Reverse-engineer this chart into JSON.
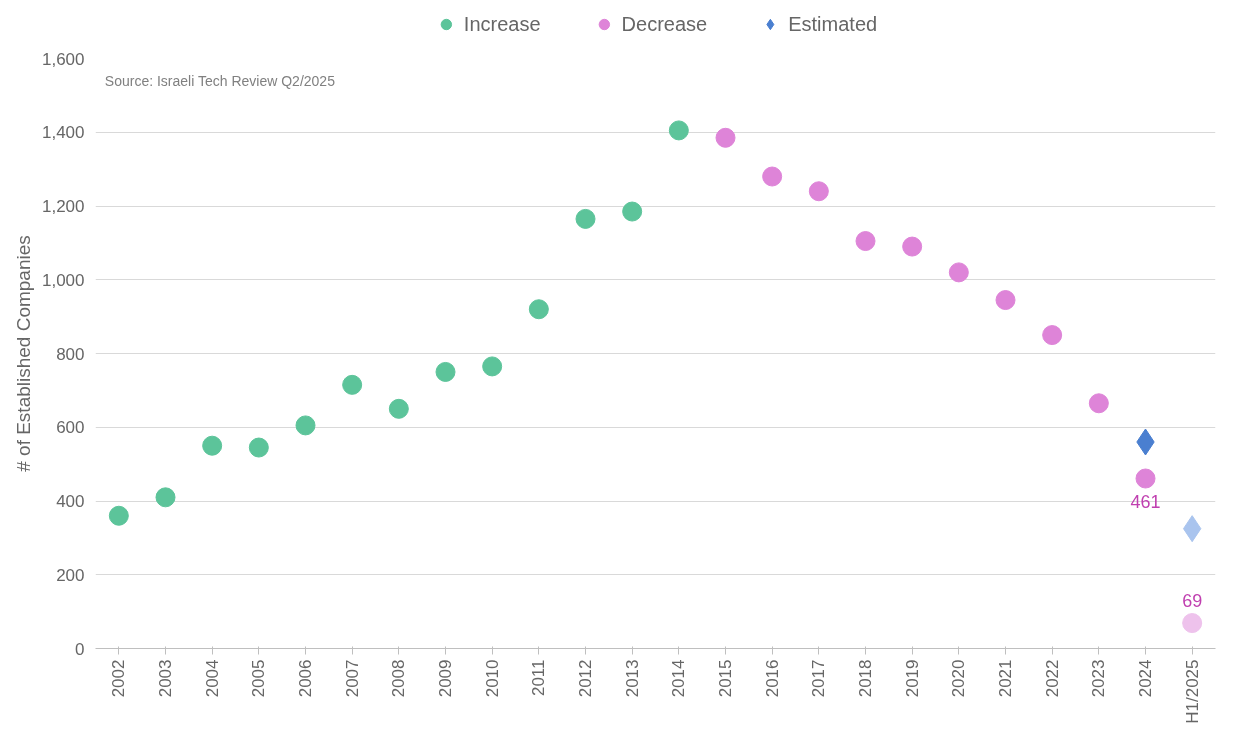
{
  "chart_data": {
    "type": "scatter",
    "ylabel": "# of Established Companies",
    "categories": [
      "2002",
      "2003",
      "2004",
      "2005",
      "2006",
      "2007",
      "2008",
      "2009",
      "2010",
      "2011",
      "2012",
      "2013",
      "2014",
      "2015",
      "2016",
      "2017",
      "2018",
      "2019",
      "2020",
      "2021",
      "2022",
      "2023",
      "2024",
      "H1/2025"
    ],
    "series": [
      {
        "name": "Increase",
        "color": "#5cc49a",
        "marker": "circle",
        "values": [
          360,
          410,
          550,
          545,
          605,
          715,
          650,
          750,
          765,
          920,
          1165,
          1185,
          1405,
          null,
          null,
          null,
          null,
          null,
          null,
          null,
          null,
          null,
          null,
          null
        ]
      },
      {
        "name": "Decrease",
        "color": "#de84d8",
        "marker": "circle",
        "colors": [
          "#de84d8",
          "#de84d8",
          "#de84d8",
          "#de84d8",
          "#de84d8",
          "#de84d8",
          "#de84d8",
          "#de84d8",
          "#de84d8",
          "#de84d8",
          "#de84d8",
          "#de84d8",
          "#de84d8",
          "#de84d8",
          "#de84d8",
          "#de84d8",
          "#de84d8",
          "#de84d8",
          "#de84d8",
          "#de84d8",
          "#de84d8",
          "#de84d8",
          "#de84d8",
          "#eec2ec"
        ],
        "values": [
          null,
          null,
          null,
          null,
          null,
          null,
          null,
          null,
          null,
          null,
          null,
          null,
          null,
          1385,
          1280,
          1240,
          1105,
          1090,
          1020,
          945,
          850,
          665,
          461,
          69
        ],
        "value_labels": [
          null,
          null,
          null,
          null,
          null,
          null,
          null,
          null,
          null,
          null,
          null,
          null,
          null,
          null,
          null,
          null,
          null,
          null,
          null,
          null,
          null,
          null,
          "461",
          "69"
        ]
      },
      {
        "name": "Estimated",
        "color": "#4a7fd0",
        "marker": "diamond",
        "colors": [
          "#4a7fd0",
          "#4a7fd0",
          "#4a7fd0",
          "#4a7fd0",
          "#4a7fd0",
          "#4a7fd0",
          "#4a7fd0",
          "#4a7fd0",
          "#4a7fd0",
          "#4a7fd0",
          "#4a7fd0",
          "#4a7fd0",
          "#4a7fd0",
          "#4a7fd0",
          "#4a7fd0",
          "#4a7fd0",
          "#4a7fd0",
          "#4a7fd0",
          "#4a7fd0",
          "#4a7fd0",
          "#4a7fd0",
          "#4a7fd0",
          "#4a7fd0",
          "#a9c4ee"
        ],
        "values": [
          null,
          null,
          null,
          null,
          null,
          null,
          null,
          null,
          null,
          null,
          null,
          null,
          null,
          null,
          null,
          null,
          null,
          null,
          null,
          null,
          null,
          null,
          560,
          325
        ]
      }
    ],
    "ylim": [
      0,
      1600
    ],
    "yticks": [
      {
        "value": 0,
        "label": "0"
      },
      {
        "value": 200,
        "label": "200"
      },
      {
        "value": 400,
        "label": "400"
      },
      {
        "value": 600,
        "label": "600"
      },
      {
        "value": 800,
        "label": "800"
      },
      {
        "value": 1000,
        "label": "1,000"
      },
      {
        "value": 1200,
        "label": "1,200"
      },
      {
        "value": 1400,
        "label": "1,400"
      },
      {
        "value": 1600,
        "label": "1,600"
      }
    ],
    "grid": "y",
    "legend": "top",
    "annotations": [
      "Source: Israeli Tech Review Q2/2025"
    ]
  }
}
